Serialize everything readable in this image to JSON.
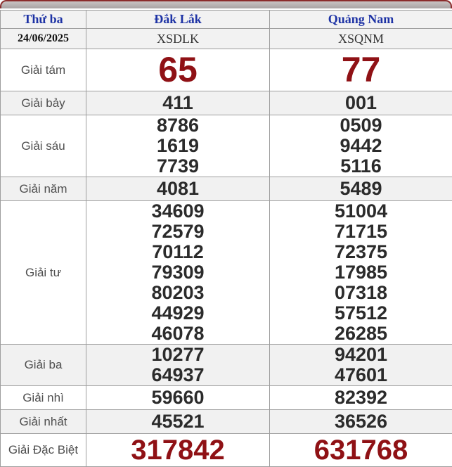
{
  "theme": {
    "accent_red": "#8f1115",
    "header_blue": "#1e33a5",
    "shaded_row_bg": "#f1f1f1",
    "bar_border_maroon": "#8b2c2c"
  },
  "table": {
    "header": {
      "day": "Thứ ba",
      "provinces": [
        "Đắk Lắk",
        "Quảng Nam"
      ]
    },
    "date_row": {
      "date": "24/06/2025",
      "codes": [
        "XSDLK",
        "XSQNM"
      ]
    },
    "rows": [
      {
        "label": "Giải tám",
        "style": "large",
        "shaded": false,
        "values": [
          [
            "65"
          ],
          [
            "77"
          ]
        ]
      },
      {
        "label": "Giải bảy",
        "style": "single",
        "shaded": true,
        "values": [
          [
            "411"
          ],
          [
            "001"
          ]
        ]
      },
      {
        "label": "Giải sáu",
        "style": "multi",
        "shaded": false,
        "values": [
          [
            "8786",
            "1619",
            "7739"
          ],
          [
            "0509",
            "9442",
            "5116"
          ]
        ]
      },
      {
        "label": "Giải năm",
        "style": "single",
        "shaded": true,
        "values": [
          [
            "4081"
          ],
          [
            "5489"
          ]
        ]
      },
      {
        "label": "Giải tư",
        "style": "multi",
        "shaded": false,
        "values": [
          [
            "34609",
            "72579",
            "70112",
            "79309",
            "80203",
            "44929",
            "46078"
          ],
          [
            "51004",
            "71715",
            "72375",
            "17985",
            "07318",
            "57512",
            "26285"
          ]
        ]
      },
      {
        "label": "Giải ba",
        "style": "multi",
        "shaded": true,
        "values": [
          [
            "10277",
            "64937"
          ],
          [
            "94201",
            "47601"
          ]
        ]
      },
      {
        "label": "Giải nhì",
        "style": "single",
        "shaded": false,
        "values": [
          [
            "59660"
          ],
          [
            "82392"
          ]
        ]
      },
      {
        "label": "Giải nhất",
        "style": "single",
        "shaded": true,
        "values": [
          [
            "45521"
          ],
          [
            "36526"
          ]
        ]
      },
      {
        "label": "Giải Đặc Biệt",
        "style": "special",
        "shaded": false,
        "values": [
          [
            "317842"
          ],
          [
            "631768"
          ]
        ]
      }
    ]
  }
}
